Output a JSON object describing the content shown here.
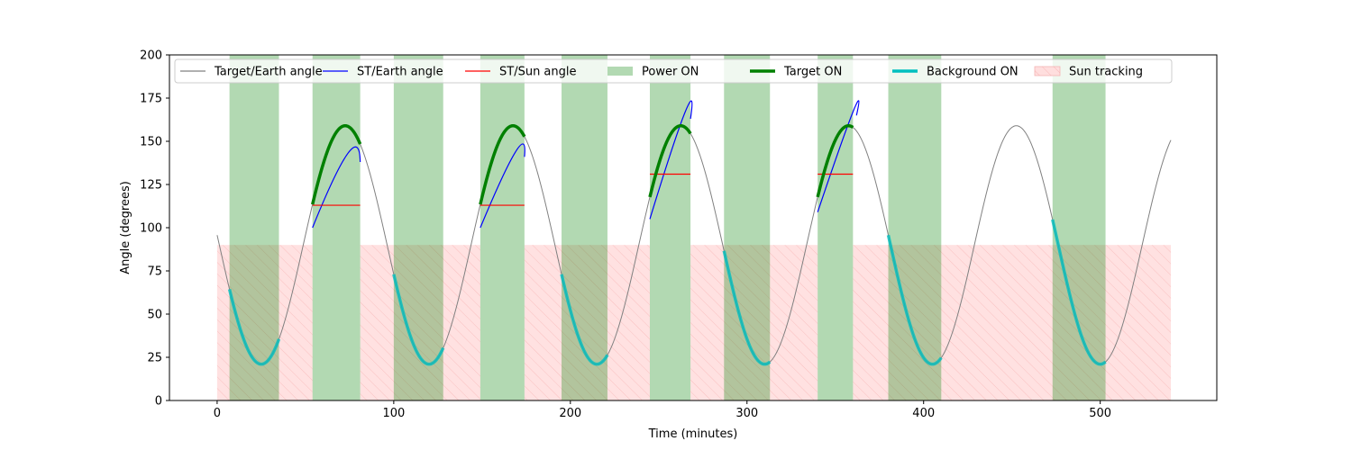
{
  "chart_data": {
    "type": "line",
    "xlabel": "Time (minutes)",
    "ylabel": "Angle (degrees)",
    "xlim": [
      -27,
      566
    ],
    "ylim": [
      0,
      200
    ],
    "x_ticks": [
      0,
      100,
      200,
      300,
      400,
      500
    ],
    "y_ticks": [
      0,
      25,
      50,
      75,
      100,
      125,
      150,
      175,
      200
    ],
    "grid": false,
    "legend_position": "top",
    "colors": {
      "target_earth": "#808080",
      "st_earth": "#0000ff",
      "st_sun": "#ff0000",
      "power_on": "#b3d9b3",
      "target_on": "#008000",
      "background_on": "#00bfbf",
      "sun_tracking": "#ffdede"
    },
    "legend": [
      {
        "label": "Target/Earth angle",
        "kind": "line",
        "key": "target_earth"
      },
      {
        "label": "ST/Earth angle",
        "kind": "line",
        "key": "st_earth"
      },
      {
        "label": "ST/Sun angle",
        "kind": "line",
        "key": "st_sun"
      },
      {
        "label": "Power ON",
        "kind": "patch",
        "key": "power_on"
      },
      {
        "label": "Target ON",
        "kind": "thickline",
        "key": "target_on"
      },
      {
        "label": "Background ON",
        "kind": "thickline",
        "key": "background_on"
      },
      {
        "label": "Sun tracking",
        "kind": "hatch",
        "key": "sun_tracking"
      }
    ],
    "target_earth_model": {
      "period_min": 95,
      "mean_deg": 90,
      "amplitude_deg": 69,
      "trough_time_min": 25,
      "x_start": 0,
      "x_end": 540
    },
    "power_on_intervals": [
      [
        7,
        35
      ],
      [
        54,
        81
      ],
      [
        100,
        128
      ],
      [
        149,
        174
      ],
      [
        195,
        221
      ],
      [
        245,
        268
      ],
      [
        287,
        313
      ],
      [
        340,
        360
      ],
      [
        380,
        410
      ],
      [
        473,
        503
      ]
    ],
    "sun_tracking_intervals": [
      [
        0,
        54
      ],
      [
        81,
        149
      ],
      [
        174,
        245
      ],
      [
        268,
        340
      ],
      [
        360,
        540
      ]
    ],
    "sun_tracking_level_deg": 90,
    "target_on_intervals": [
      [
        54,
        81
      ],
      [
        149,
        174
      ],
      [
        245,
        268
      ],
      [
        340,
        360
      ]
    ],
    "background_on_intervals": [
      [
        7,
        35
      ],
      [
        100,
        128
      ],
      [
        195,
        221
      ],
      [
        287,
        313
      ],
      [
        380,
        410
      ],
      [
        473,
        503
      ]
    ],
    "st_sun_segments": [
      {
        "x": [
          54,
          81
        ],
        "y": 113
      },
      {
        "x": [
          149,
          174
        ],
        "y": 113
      },
      {
        "x": [
          245,
          268
        ],
        "y": 131
      },
      {
        "x": [
          340,
          360
        ],
        "y": 131
      }
    ],
    "st_earth_segments": [
      {
        "x": [
          54,
          74,
          81
        ],
        "y": [
          100,
          143,
          138
        ]
      },
      {
        "x": [
          149,
          169,
          174
        ],
        "y": [
          100,
          144,
          141
        ]
      },
      {
        "x": [
          245,
          265,
          268
        ],
        "y": [
          105,
          167,
          163
        ]
      },
      {
        "x": [
          340,
          360,
          362
        ],
        "y": [
          109,
          167,
          165
        ]
      }
    ]
  }
}
